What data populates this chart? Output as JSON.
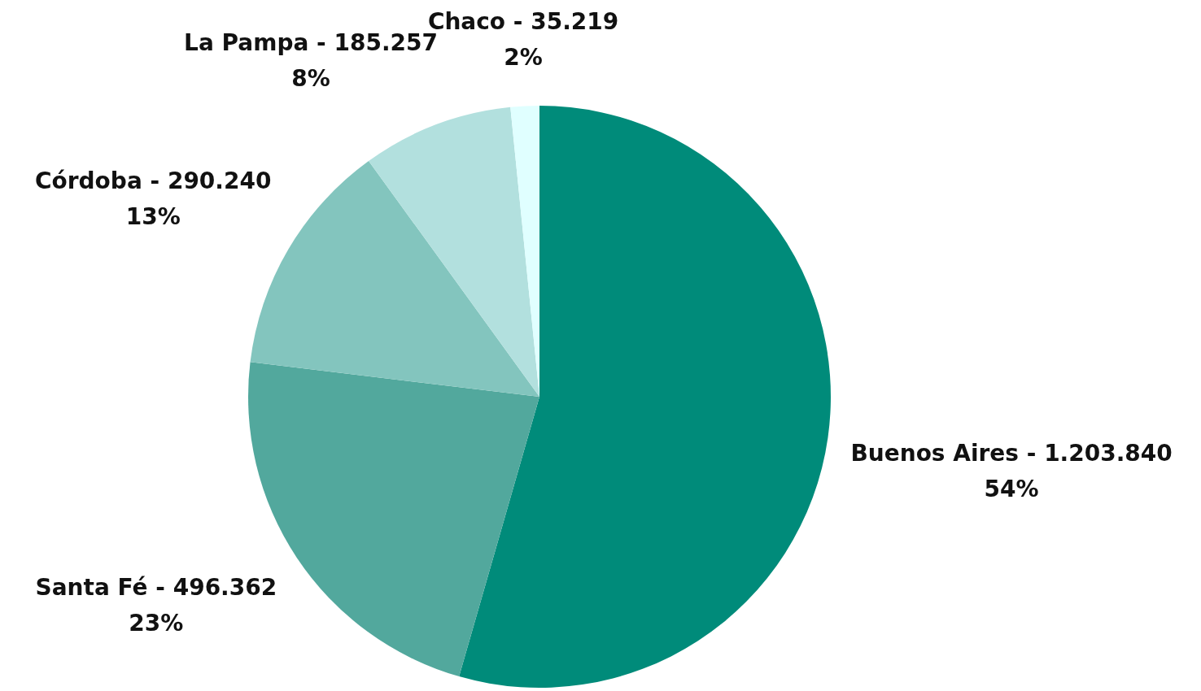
{
  "chart_data": {
    "type": "pie",
    "categories": [
      "Buenos Aires",
      "Santa Fé",
      "Córdoba",
      "La Pampa",
      "Chaco"
    ],
    "values": [
      1203840,
      496362,
      290240,
      185257,
      35219
    ],
    "value_labels": [
      "1.203.840\n54%",
      "496.362\n23%",
      "290.240\n13%",
      "185.257\n8%",
      "35.219\n2%"
    ],
    "colors": [
      "#008b7a",
      "#52a89d",
      "#83c5be",
      "#b2e0de",
      "#e0ffff"
    ]
  }
}
